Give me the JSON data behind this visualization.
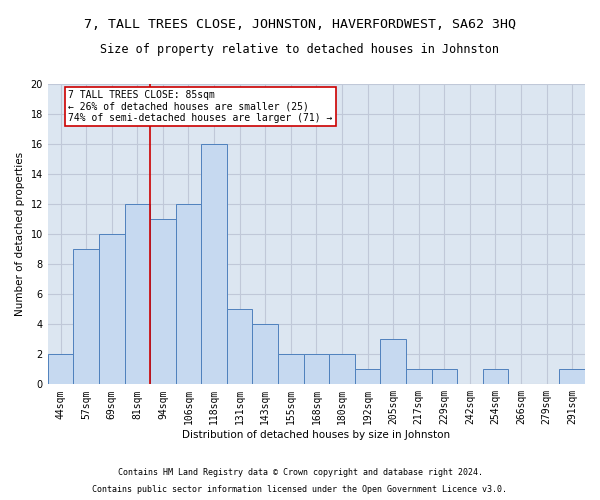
{
  "title": "7, TALL TREES CLOSE, JOHNSTON, HAVERFORDWEST, SA62 3HQ",
  "subtitle": "Size of property relative to detached houses in Johnston",
  "xlabel": "Distribution of detached houses by size in Johnston",
  "ylabel": "Number of detached properties",
  "footnote1": "Contains HM Land Registry data © Crown copyright and database right 2024.",
  "footnote2": "Contains public sector information licensed under the Open Government Licence v3.0.",
  "bar_labels": [
    "44sqm",
    "57sqm",
    "69sqm",
    "81sqm",
    "94sqm",
    "106sqm",
    "118sqm",
    "131sqm",
    "143sqm",
    "155sqm",
    "168sqm",
    "180sqm",
    "192sqm",
    "205sqm",
    "217sqm",
    "229sqm",
    "242sqm",
    "254sqm",
    "266sqm",
    "279sqm",
    "291sqm"
  ],
  "bar_values": [
    2,
    9,
    10,
    12,
    11,
    12,
    16,
    5,
    4,
    2,
    2,
    2,
    1,
    3,
    1,
    1,
    0,
    1,
    0,
    0,
    1
  ],
  "bar_color": "#c6d9f0",
  "bar_edge_color": "#4f81bd",
  "grid_color": "#c0c8d8",
  "background_color": "#dce6f1",
  "vline_x": 3.5,
  "vline_color": "#cc0000",
  "annotation_text": "7 TALL TREES CLOSE: 85sqm\n← 26% of detached houses are smaller (25)\n74% of semi-detached houses are larger (71) →",
  "annotation_box_color": "#cc0000",
  "ylim": [
    0,
    20
  ],
  "yticks": [
    0,
    2,
    4,
    6,
    8,
    10,
    12,
    14,
    16,
    18,
    20
  ],
  "title_fontsize": 9.5,
  "subtitle_fontsize": 8.5,
  "axis_label_fontsize": 7.5,
  "tick_fontsize": 7,
  "annotation_fontsize": 7,
  "footnote_fontsize": 6
}
